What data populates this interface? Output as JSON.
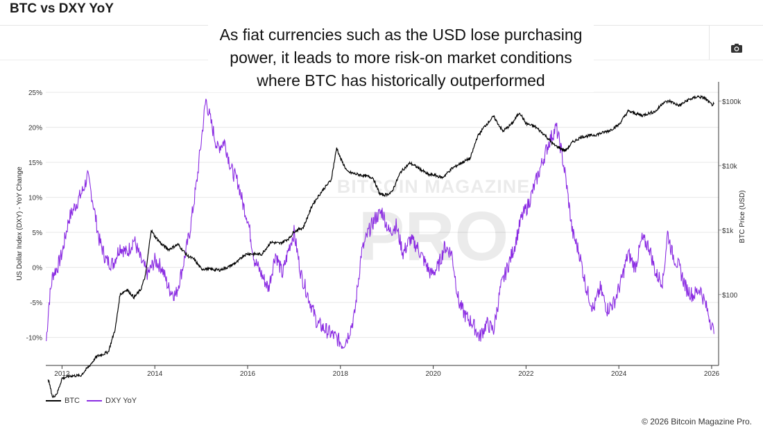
{
  "page": {
    "title": "BTC vs DXY YoY",
    "annotation": "As fiat currencies such as the USD lose purchasing power, it leads to more risk-on market conditions where BTC has historically outperformed",
    "footer": "© 2026 Bitcoin Magazine Pro.",
    "watermark_line1": "BITCOIN MAGAZINE",
    "watermark_line2": "PRO",
    "camera_icon": "camera-icon"
  },
  "chart_data": {
    "type": "line",
    "ylabel": "US Dollar Index (DXY) - YoY Change",
    "y2label": "BTC Price (USD)",
    "xlim": [
      2011.65,
      2026.15
    ],
    "ylim": [
      -14,
      26.5
    ],
    "y2lim_log10": [
      0.9,
      5.3
    ],
    "x_ticks": [
      "2012",
      "2014",
      "2016",
      "2018",
      "2020",
      "2022",
      "2024",
      "2026"
    ],
    "y_ticks": [
      {
        "v": 25,
        "label": "25%"
      },
      {
        "v": 20,
        "label": "20%"
      },
      {
        "v": 15,
        "label": "15%"
      },
      {
        "v": 10,
        "label": "10%"
      },
      {
        "v": 5,
        "label": "5%"
      },
      {
        "v": 0,
        "label": "0%"
      },
      {
        "v": -5,
        "label": "-5%"
      },
      {
        "v": -10,
        "label": "-10%"
      }
    ],
    "y2_ticks": [
      {
        "v": 100000,
        "label": "$100k"
      },
      {
        "v": 10000,
        "label": "$10k"
      },
      {
        "v": 1000,
        "label": "$1k"
      },
      {
        "v": 100,
        "label": "$100"
      }
    ],
    "grid": true,
    "legend_position": "bottom-left",
    "colors": {
      "btc": "#000000",
      "dxy": "#8a2be2"
    },
    "series": [
      {
        "name": "BTC",
        "axis": "right",
        "x": [
          2011.7,
          2011.8,
          2011.9,
          2012.0,
          2012.2,
          2012.4,
          2012.6,
          2012.75,
          2012.9,
          2013.0,
          2013.15,
          2013.25,
          2013.4,
          2013.55,
          2013.7,
          2013.8,
          2013.92,
          2014.0,
          2014.15,
          2014.3,
          2014.5,
          2014.7,
          2014.85,
          2015.0,
          2015.1,
          2015.4,
          2015.6,
          2015.8,
          2015.9,
          2016.0,
          2016.3,
          2016.5,
          2016.7,
          2016.9,
          2017.0,
          2017.2,
          2017.4,
          2017.6,
          2017.8,
          2017.92,
          2018.0,
          2018.15,
          2018.3,
          2018.5,
          2018.7,
          2018.85,
          2018.95,
          2019.1,
          2019.3,
          2019.5,
          2019.7,
          2019.9,
          2020.0,
          2020.2,
          2020.4,
          2020.6,
          2020.8,
          2020.95,
          2021.1,
          2021.3,
          2021.5,
          2021.7,
          2021.86,
          2022.0,
          2022.2,
          2022.4,
          2022.6,
          2022.85,
          2023.0,
          2023.2,
          2023.5,
          2023.8,
          2024.0,
          2024.2,
          2024.5,
          2024.8,
          2024.95,
          2025.1,
          2025.3,
          2025.5,
          2025.7,
          2025.85,
          2026.0,
          2026.05
        ],
        "y": [
          5,
          2.5,
          3,
          5,
          5.5,
          5.5,
          8,
          11,
          12,
          13,
          30,
          100,
          120,
          90,
          120,
          200,
          1000,
          800,
          600,
          500,
          600,
          400,
          350,
          250,
          250,
          240,
          270,
          330,
          400,
          430,
          420,
          650,
          620,
          750,
          950,
          1100,
          2500,
          4000,
          6000,
          19000,
          13000,
          8000,
          7500,
          7000,
          6500,
          3600,
          3500,
          3800,
          8000,
          11000,
          9000,
          7200,
          7200,
          6500,
          9000,
          11000,
          13000,
          28000,
          40000,
          58000,
          34000,
          45000,
          67000,
          45000,
          40000,
          30000,
          21000,
          17000,
          23000,
          28000,
          30000,
          35000,
          43000,
          70000,
          60000,
          70000,
          95000,
          100000,
          85000,
          105000,
          118000,
          112000,
          88000,
          90000
        ]
      },
      {
        "name": "DXY YoY",
        "axis": "left",
        "x": [
          2011.66,
          2011.72,
          2011.8,
          2011.9,
          2012.0,
          2012.15,
          2012.3,
          2012.45,
          2012.55,
          2012.65,
          2012.8,
          2012.95,
          2013.1,
          2013.25,
          2013.4,
          2013.55,
          2013.7,
          2013.85,
          2014.0,
          2014.15,
          2014.3,
          2014.45,
          2014.6,
          2014.75,
          2014.9,
          2015.0,
          2015.1,
          2015.2,
          2015.35,
          2015.5,
          2015.65,
          2015.8,
          2015.9,
          2016.0,
          2016.15,
          2016.3,
          2016.45,
          2016.6,
          2016.75,
          2016.9,
          2017.0,
          2017.15,
          2017.3,
          2017.5,
          2017.7,
          2017.9,
          2018.05,
          2018.15,
          2018.3,
          2018.45,
          2018.6,
          2018.75,
          2018.9,
          2019.05,
          2019.2,
          2019.35,
          2019.5,
          2019.65,
          2019.8,
          2019.95,
          2020.1,
          2020.25,
          2020.4,
          2020.55,
          2020.7,
          2020.85,
          2021.0,
          2021.15,
          2021.3,
          2021.45,
          2021.6,
          2021.75,
          2021.9,
          2022.05,
          2022.2,
          2022.35,
          2022.5,
          2022.65,
          2022.75,
          2022.85,
          2023.0,
          2023.15,
          2023.3,
          2023.45,
          2023.6,
          2023.75,
          2023.9,
          2024.05,
          2024.2,
          2024.35,
          2024.5,
          2024.65,
          2024.8,
          2024.95,
          2025.05,
          2025.15,
          2025.3,
          2025.45,
          2025.6,
          2025.75,
          2025.85,
          2025.95,
          2026.05
        ],
        "y": [
          -10.5,
          -5,
          -1,
          0,
          2,
          7,
          9,
          11,
          13,
          10,
          4,
          1,
          0.5,
          3,
          2,
          4,
          1,
          -1,
          1,
          0,
          -3,
          -4,
          0,
          5,
          12,
          18,
          24,
          21,
          17,
          18,
          14,
          12,
          9,
          7,
          1,
          -1,
          -3,
          2,
          -1,
          3,
          5,
          -1,
          -4,
          -8,
          -9,
          -10,
          -11,
          -10,
          -7,
          2,
          5,
          7,
          8,
          5,
          6,
          2,
          4,
          3,
          1,
          -1,
          0,
          3,
          2,
          -5,
          -7,
          -8,
          -10,
          -8,
          -9,
          -3,
          0,
          3,
          7,
          9,
          12,
          15,
          18,
          20,
          17,
          13,
          5,
          2,
          -3,
          -6,
          -3,
          -6,
          -5,
          -2,
          2,
          0,
          4,
          3,
          -1,
          -2,
          5,
          2,
          0,
          -3,
          -4,
          -3,
          -5,
          -7,
          -9.5
        ]
      }
    ]
  }
}
